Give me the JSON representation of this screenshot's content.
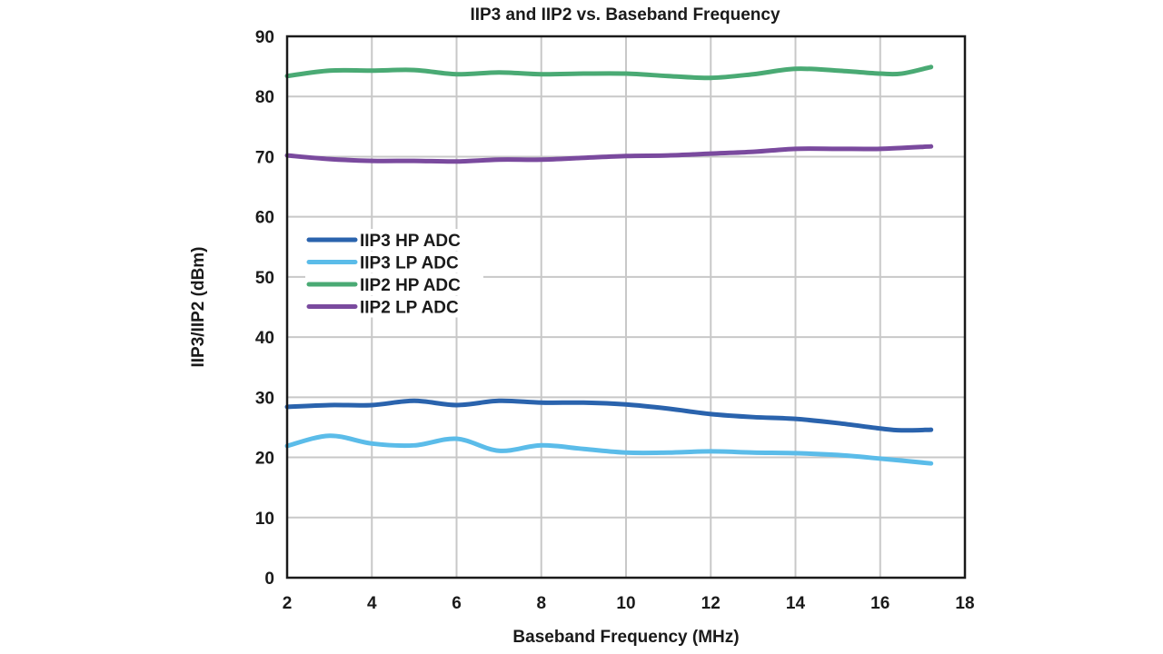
{
  "chart_data": {
    "type": "line",
    "title": "IIP3 and IIP2 vs. Baseband Frequency",
    "xlabel": "Baseband Frequency (MHz)",
    "ylabel": "IIP3/IIP2 (dBm)",
    "xlim": [
      2,
      18
    ],
    "ylim": [
      0,
      90
    ],
    "xticks": [
      2,
      4,
      6,
      8,
      10,
      12,
      14,
      16,
      18
    ],
    "yticks": [
      0,
      10,
      20,
      30,
      40,
      50,
      60,
      70,
      80,
      90
    ],
    "grid": true,
    "legend_position": "center-left",
    "series": [
      {
        "name": "IIP3 HP ADC",
        "color": "#2a63ad",
        "x": [
          2,
          3,
          4,
          5,
          6,
          7,
          8,
          9,
          10,
          11,
          12,
          13,
          14,
          15,
          16,
          16.5,
          17.2
        ],
        "values": [
          28.4,
          28.7,
          28.7,
          29.4,
          28.7,
          29.4,
          29.1,
          29.1,
          28.8,
          28.1,
          27.2,
          26.7,
          26.4,
          25.7,
          24.8,
          24.5,
          24.6
        ]
      },
      {
        "name": "IIP3 LP ADC",
        "color": "#5bbce9",
        "x": [
          2,
          3,
          4,
          5,
          6,
          7,
          8,
          9,
          10,
          11,
          12,
          13,
          14,
          15,
          16,
          17.2
        ],
        "values": [
          21.9,
          23.6,
          22.3,
          22.0,
          23.1,
          21.1,
          22.0,
          21.4,
          20.8,
          20.8,
          21.0,
          20.8,
          20.7,
          20.4,
          19.8,
          19.0
        ]
      },
      {
        "name": "IIP2 HP ADC",
        "color": "#4aaa74",
        "x": [
          2,
          3,
          4,
          5,
          6,
          7,
          8,
          9,
          10,
          11,
          12,
          13,
          14,
          15,
          16,
          16.5,
          17.2
        ],
        "values": [
          83.4,
          84.3,
          84.3,
          84.4,
          83.7,
          84.0,
          83.7,
          83.8,
          83.8,
          83.4,
          83.1,
          83.7,
          84.6,
          84.3,
          83.8,
          83.8,
          84.9
        ]
      },
      {
        "name": "IIP2 LP ADC",
        "color": "#7a4a9e",
        "x": [
          2,
          3,
          4,
          5,
          6,
          7,
          8,
          9,
          10,
          11,
          12,
          13,
          14,
          15,
          16,
          17.2
        ],
        "values": [
          70.2,
          69.6,
          69.3,
          69.3,
          69.2,
          69.5,
          69.5,
          69.8,
          70.1,
          70.2,
          70.5,
          70.8,
          71.3,
          71.3,
          71.3,
          71.7
        ]
      }
    ]
  }
}
